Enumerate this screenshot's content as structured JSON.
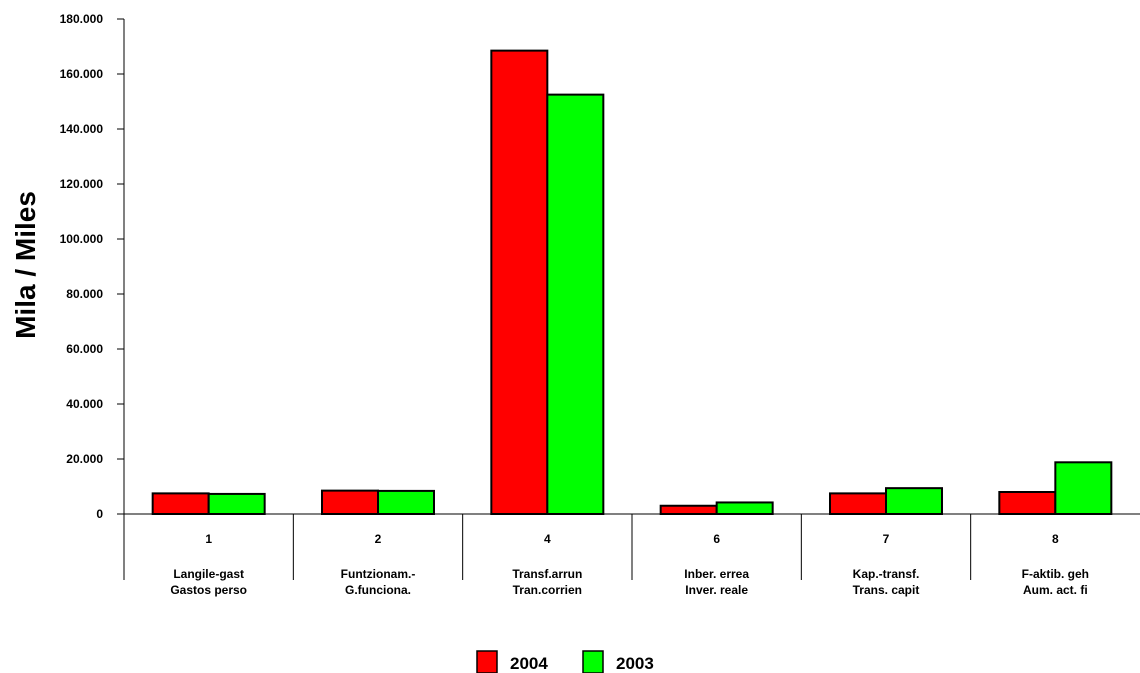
{
  "chart_data": {
    "type": "bar",
    "title": "",
    "ylabel": "Mila / Miles",
    "ylim": [
      0,
      180000
    ],
    "yticks": [
      {
        "value": 0,
        "label": "0"
      },
      {
        "value": 20000,
        "label": "20.000"
      },
      {
        "value": 40000,
        "label": "40.000"
      },
      {
        "value": 60000,
        "label": "60.000"
      },
      {
        "value": 80000,
        "label": "80.000"
      },
      {
        "value": 100000,
        "label": "100.000"
      },
      {
        "value": 120000,
        "label": "120.000"
      },
      {
        "value": 140000,
        "label": "140.000"
      },
      {
        "value": 160000,
        "label": "160.000"
      },
      {
        "value": 180000,
        "label": "180.000"
      }
    ],
    "categories": [
      {
        "code": "1",
        "line1": "Langile-gast",
        "line2": "Gastos perso"
      },
      {
        "code": "2",
        "line1": "Funtzionam.-",
        "line2": "G.funciona."
      },
      {
        "code": "4",
        "line1": "Transf.arrun",
        "line2": "Tran.corrien"
      },
      {
        "code": "6",
        "line1": "Inber. errea",
        "line2": "Inver. reale"
      },
      {
        "code": "7",
        "line1": "Kap.-transf.",
        "line2": "Trans. capit"
      },
      {
        "code": "8",
        "line1": "F-aktib. geh",
        "line2": "Aum. act. fi"
      }
    ],
    "series": [
      {
        "name": "2004",
        "color": "#ff0000",
        "values": [
          7500,
          8500,
          168500,
          3000,
          7500,
          8000
        ]
      },
      {
        "name": "2003",
        "color": "#00ff00",
        "values": [
          7300,
          8400,
          152500,
          4200,
          9400,
          18800
        ]
      }
    ],
    "grid": false,
    "legend": "bottom"
  }
}
